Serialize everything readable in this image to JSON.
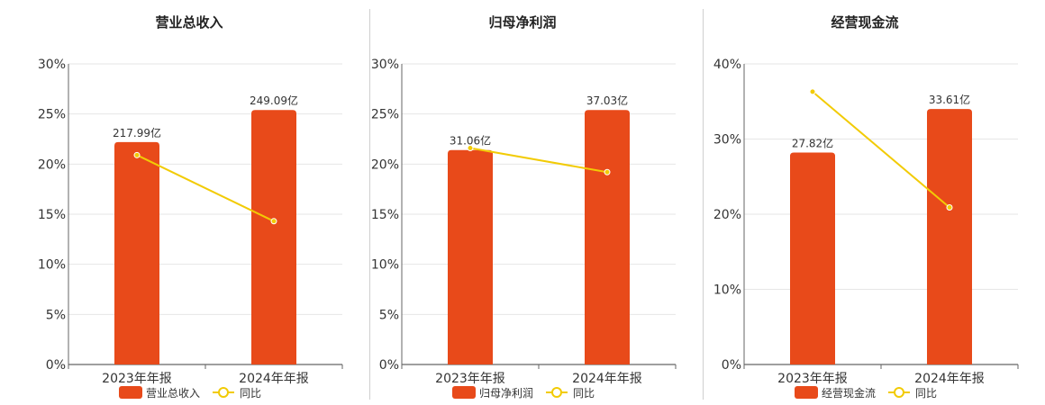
{
  "colors": {
    "bar": "#e84a1a",
    "line": "#f2cb05",
    "grid": "#e6e6e6",
    "axis": "#666666"
  },
  "chart_data": [
    {
      "type": "bar",
      "title": "营业总收入",
      "categories": [
        "2023年年报",
        "2024年年报"
      ],
      "series": [
        {
          "name": "营业总收入",
          "kind": "bar",
          "values": [
            22.2,
            25.4
          ],
          "value_labels": [
            "217.99亿",
            "249.09亿"
          ]
        },
        {
          "name": "同比",
          "kind": "line",
          "values": [
            20.9,
            14.3
          ]
        }
      ],
      "y_ticks": [
        "0%",
        "5%",
        "10%",
        "15%",
        "20%",
        "25%",
        "30%"
      ],
      "ylim": [
        0,
        30
      ],
      "grid": true,
      "legend_position": "bottom"
    },
    {
      "type": "bar",
      "title": "归母净利润",
      "categories": [
        "2023年年报",
        "2024年年报"
      ],
      "series": [
        {
          "name": "归母净利润",
          "kind": "bar",
          "values": [
            21.4,
            25.4
          ],
          "value_labels": [
            "31.06亿",
            "37.03亿"
          ]
        },
        {
          "name": "同比",
          "kind": "line",
          "values": [
            21.6,
            19.2
          ]
        }
      ],
      "y_ticks": [
        "0%",
        "5%",
        "10%",
        "15%",
        "20%",
        "25%",
        "30%"
      ],
      "ylim": [
        0,
        30
      ],
      "grid": true,
      "legend_position": "bottom"
    },
    {
      "type": "bar",
      "title": "经营现金流",
      "categories": [
        "2023年年报",
        "2024年年报"
      ],
      "series": [
        {
          "name": "经营现金流",
          "kind": "bar",
          "values": [
            28.2,
            34.0
          ],
          "value_labels": [
            "27.82亿",
            "33.61亿"
          ]
        },
        {
          "name": "同比",
          "kind": "line",
          "values": [
            36.3,
            20.9
          ]
        }
      ],
      "y_ticks": [
        "0%",
        "10%",
        "20%",
        "30%",
        "40%"
      ],
      "ylim": [
        0,
        40
      ],
      "grid": true,
      "legend_position": "bottom"
    }
  ]
}
